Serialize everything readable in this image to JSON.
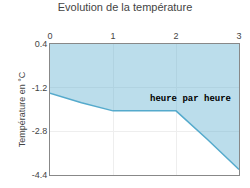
{
  "chart_data": {
    "type": "area",
    "title": "Evolution de la température",
    "ylabel": "Température en °C",
    "x": [
      0,
      0.5,
      1.0,
      1.5,
      2.0,
      2.5,
      3.0
    ],
    "values": [
      -1.4,
      -1.75,
      -2.05,
      -2.05,
      -2.05,
      -3.1,
      -4.2
    ],
    "baseline": 0.4,
    "color": "#55aacc",
    "xlim": [
      0,
      3
    ],
    "ylim": [
      -4.4,
      0.4
    ],
    "xticks": [
      0,
      1,
      2,
      3
    ],
    "yticks": [
      0.4,
      -1.2,
      -2.8,
      -4.4
    ],
    "grid": true,
    "annotations": [
      {
        "text": "heure par heure",
        "x": 1.55,
        "y": -1.35
      }
    ]
  }
}
